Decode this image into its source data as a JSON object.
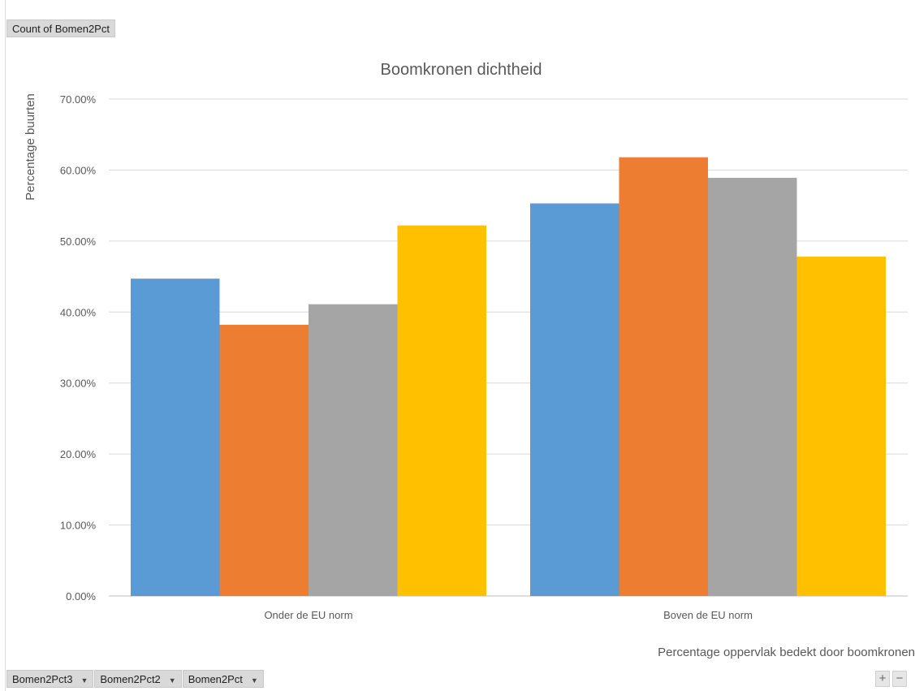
{
  "pivot": {
    "value_field": "Count of Bomen2Pct",
    "axis_fields": [
      "Bomen2Pct3",
      "Bomen2Pct2",
      "Bomen2Pct"
    ],
    "expand_label": "+",
    "collapse_label": "−"
  },
  "colors": {
    "series": [
      "#5b9bd5",
      "#ed7d31",
      "#a5a5a5",
      "#ffc000"
    ],
    "gridline": "#d9d9d9",
    "axis_line": "#bfbfbf"
  },
  "chart_data": {
    "type": "bar",
    "title": "Boomkronen dichtheid",
    "xlabel": "Percentage oppervlak bedekt door boomkronen",
    "ylabel": "Percentage buurten",
    "categories": [
      "Onder de EU norm",
      "Boven de EU norm"
    ],
    "series": [
      {
        "values": [
          44.7,
          55.3
        ]
      },
      {
        "values": [
          38.2,
          61.8
        ]
      },
      {
        "values": [
          41.1,
          58.9
        ]
      },
      {
        "values": [
          52.2,
          47.8
        ]
      }
    ],
    "ylim": [
      0,
      70
    ],
    "y_ticks": [
      "0.00%",
      "10.00%",
      "20.00%",
      "30.00%",
      "40.00%",
      "50.00%",
      "60.00%",
      "70.00%"
    ],
    "grid": true,
    "legend": "none"
  }
}
